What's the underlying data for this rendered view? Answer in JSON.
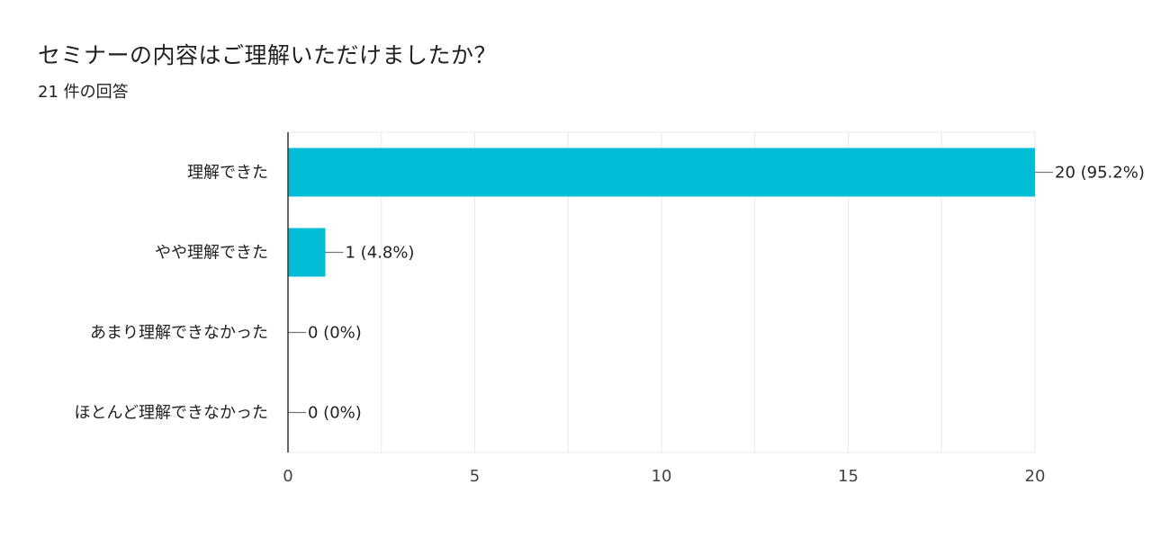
{
  "header": {
    "title": "セミナーの内容はご理解いただけましたか？",
    "response_count": "21 件の回答"
  },
  "colors": {
    "bar": "#00bcd4",
    "grid": "#e8e8e8",
    "axis": "#333333",
    "leader": "#757575",
    "text": "#212121"
  },
  "chart_data": {
    "type": "bar",
    "orientation": "horizontal",
    "categories": [
      "理解できた",
      "やや理解できた",
      "あまり理解できなかった",
      "ほとんど理解できなかった"
    ],
    "values": [
      20,
      1,
      0,
      0
    ],
    "data_labels": [
      "20 (95.2%)",
      "1 (4.8%)",
      "0 (0%)",
      "0 (0%)"
    ],
    "xlim": [
      0,
      20
    ],
    "ticks": [
      0,
      5,
      10,
      15,
      20
    ],
    "tick_labels": [
      "0",
      "5",
      "10",
      "15",
      "20"
    ],
    "minor_grid_step": 2.5,
    "grid": true,
    "legend": "none"
  }
}
